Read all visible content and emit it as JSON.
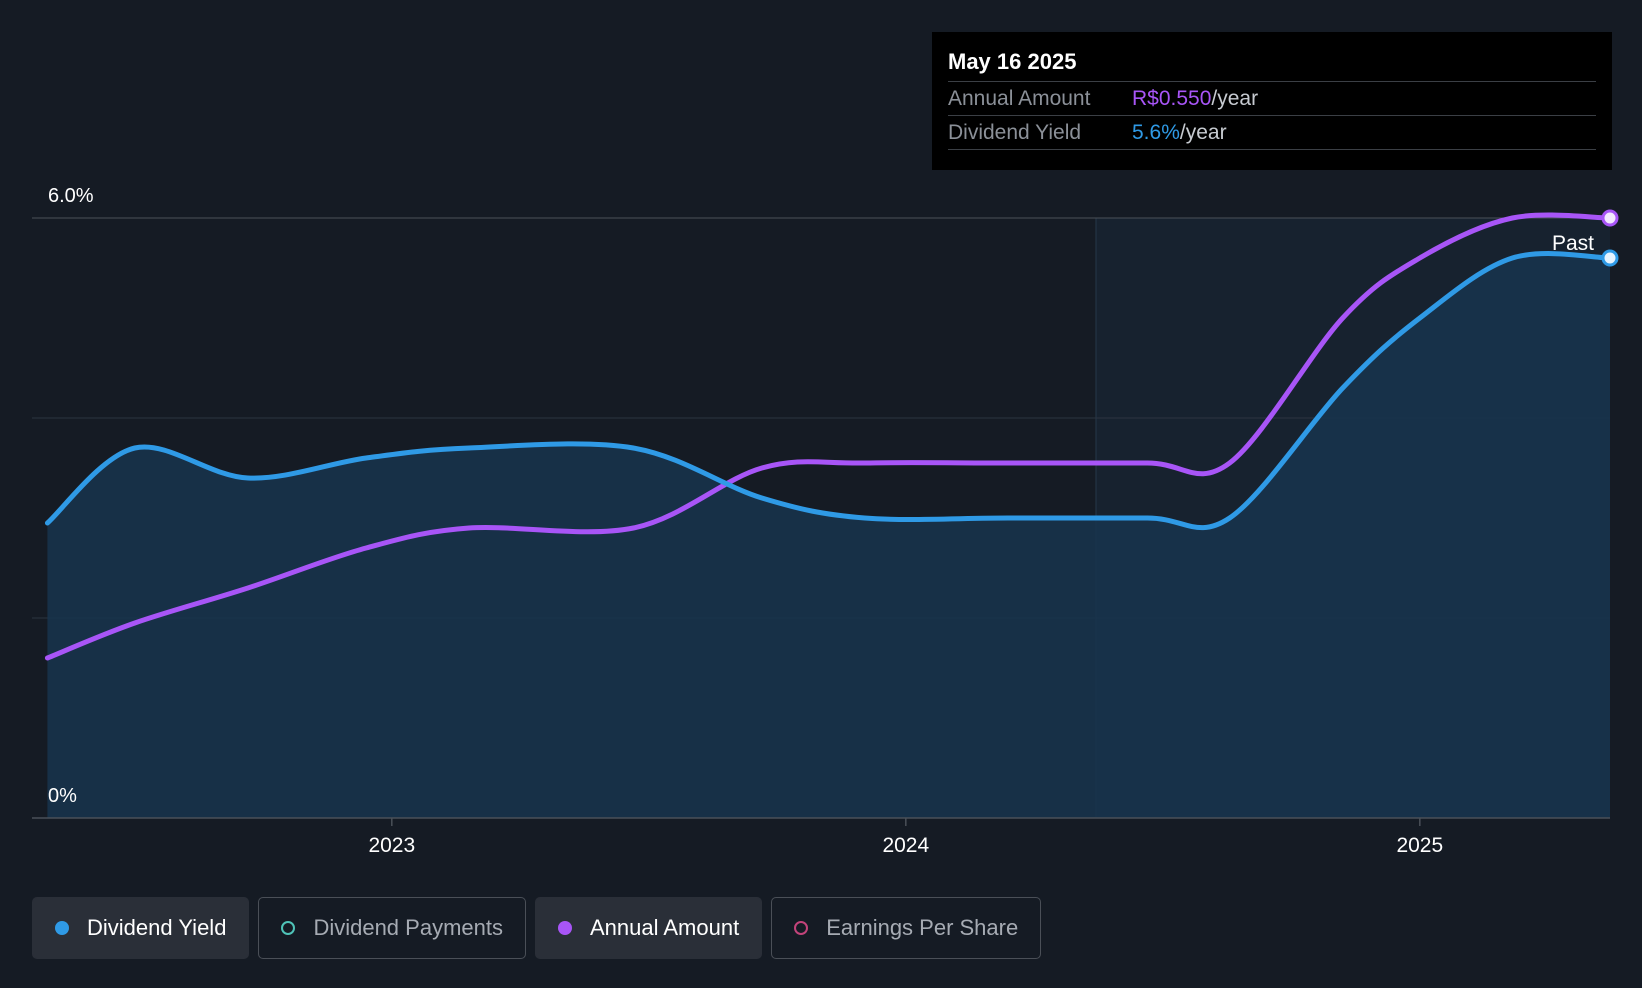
{
  "tooltip": {
    "date": "May 16 2025",
    "rows": [
      {
        "label": "Annual Amount",
        "value": "R$0.550",
        "unit": "/year"
      },
      {
        "label": "Dividend Yield",
        "value": "5.6%",
        "unit": "/year"
      }
    ]
  },
  "legend": [
    {
      "label": "Dividend Yield",
      "active": true
    },
    {
      "label": "Dividend Payments",
      "active": false
    },
    {
      "label": "Annual Amount",
      "active": true
    },
    {
      "label": "Earnings Per Share",
      "active": false
    }
  ],
  "colors": {
    "yield": "#2f9ae6",
    "annual": "#a855f7",
    "payments": "#4fc3b8",
    "eps": "#c2437a",
    "area": "#17344d"
  },
  "chart_data": {
    "type": "line",
    "y_ticks": [
      "6.0%",
      "0%"
    ],
    "ylim": [
      0,
      6
    ],
    "x_ticks": [
      {
        "label": "2023",
        "x": 2023.0
      },
      {
        "label": "2024",
        "x": 2024.0
      },
      {
        "label": "2025",
        "x": 2025.0
      }
    ],
    "xlim": [
      2022.3,
      2025.37
    ],
    "past_start": 2024.37,
    "past_label": "Past",
    "series": [
      {
        "name": "Dividend Yield",
        "values": [
          [
            2022.33,
            2.95
          ],
          [
            2022.5,
            3.7
          ],
          [
            2022.72,
            3.4
          ],
          [
            2022.95,
            3.6
          ],
          [
            2023.15,
            3.7
          ],
          [
            2023.47,
            3.7
          ],
          [
            2023.72,
            3.2
          ],
          [
            2023.92,
            3.0
          ],
          [
            2024.2,
            3.0
          ],
          [
            2024.47,
            3.0
          ],
          [
            2024.63,
            3.0
          ],
          [
            2024.85,
            4.3
          ],
          [
            2025.0,
            5.0
          ],
          [
            2025.18,
            5.6
          ],
          [
            2025.37,
            5.6
          ]
        ]
      },
      {
        "name": "Annual Amount",
        "values": [
          [
            2022.33,
            1.6
          ],
          [
            2022.5,
            1.95
          ],
          [
            2022.72,
            2.3
          ],
          [
            2022.95,
            2.7
          ],
          [
            2023.15,
            2.9
          ],
          [
            2023.47,
            2.9
          ],
          [
            2023.72,
            3.5
          ],
          [
            2023.92,
            3.55
          ],
          [
            2024.2,
            3.55
          ],
          [
            2024.47,
            3.55
          ],
          [
            2024.63,
            3.55
          ],
          [
            2024.85,
            5.0
          ],
          [
            2025.0,
            5.6
          ],
          [
            2025.18,
            6.0
          ],
          [
            2025.37,
            6.0
          ]
        ]
      }
    ]
  }
}
